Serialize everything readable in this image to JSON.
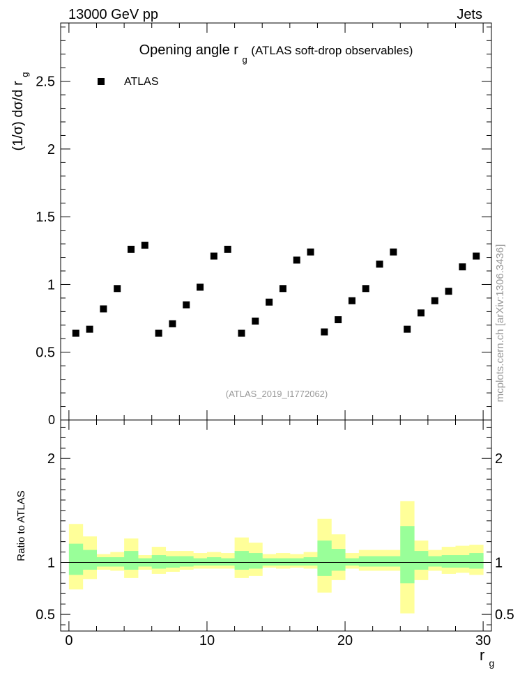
{
  "header": {
    "left": "13000 GeV pp",
    "right": "Jets"
  },
  "side_label": "mcplots.cern.ch [arXiv:1306.3436]",
  "chart_data": [
    {
      "type": "scatter",
      "title_main": "Opening angle r",
      "title_sub": "g",
      "title_rest": "(ATLAS soft-drop observables)",
      "ylabel_main": "(1/σ) dσ/d r",
      "ylabel_sub": "g",
      "analysis_id": "(ATLAS_2019_I1772062)",
      "legend": {
        "label": "ATLAS",
        "marker": "square",
        "placement": "top-left"
      },
      "xlim": [
        -0.6,
        30.6
      ],
      "ylim": [
        0,
        2.93
      ],
      "y_ticks": [
        0.5,
        1,
        1.5,
        2,
        2.5
      ],
      "y_tick_labels": [
        "0.5",
        "1",
        "1.5",
        "2",
        "2.5"
      ],
      "y_bottom_label": "0",
      "series": [
        {
          "name": "ATLAS",
          "x": [
            0.5,
            1.5,
            2.5,
            3.5,
            4.5,
            5.5,
            6.5,
            7.5,
            8.5,
            9.5,
            10.5,
            11.5,
            12.5,
            13.5,
            14.5,
            15.5,
            16.5,
            17.5,
            18.5,
            19.5,
            20.5,
            21.5,
            22.5,
            23.5,
            24.5,
            25.5,
            26.5,
            27.5,
            28.5,
            29.5
          ],
          "y": [
            0.64,
            0.67,
            0.82,
            0.97,
            1.26,
            1.29,
            0.64,
            0.71,
            0.85,
            0.98,
            1.21,
            1.26,
            0.64,
            0.73,
            0.87,
            0.97,
            1.18,
            1.24,
            0.65,
            0.74,
            0.88,
            0.97,
            1.15,
            1.24,
            0.67,
            0.79,
            0.88,
            0.95,
            1.13,
            1.21
          ]
        }
      ]
    },
    {
      "type": "area",
      "ylabel": "Ratio to ATLAS",
      "xlabel_main": "r",
      "xlabel_sub": "g",
      "xlim": [
        -0.6,
        30.6
      ],
      "ylim": [
        0.34,
        2.37
      ],
      "x_ticks": [
        0,
        10,
        20,
        30
      ],
      "x_tick_labels": [
        "0",
        "10",
        "20",
        "30"
      ],
      "y_ticks": [
        0.5,
        1,
        2
      ],
      "y_tick_labels": [
        "0.5",
        "1",
        "2"
      ],
      "reference_line": 1,
      "band_colors": {
        "outer": "#ffff99",
        "inner": "#99ff99",
        "line": "#000000"
      },
      "bins_x_edges": [
        0,
        1,
        2,
        3,
        4,
        5,
        6,
        7,
        8,
        9,
        10,
        11,
        12,
        13,
        14,
        15,
        16,
        17,
        18,
        19,
        20,
        21,
        22,
        23,
        24,
        25,
        26,
        27,
        28,
        29,
        30
      ],
      "outer_band": {
        "low": [
          0.74,
          0.84,
          0.93,
          0.92,
          0.85,
          0.93,
          0.89,
          0.91,
          0.93,
          0.94,
          0.94,
          0.94,
          0.85,
          0.87,
          0.95,
          0.94,
          0.95,
          0.94,
          0.71,
          0.83,
          0.94,
          0.92,
          0.92,
          0.92,
          0.51,
          0.83,
          0.92,
          0.89,
          0.9,
          0.88
        ],
        "high": [
          1.37,
          1.25,
          1.08,
          1.1,
          1.23,
          1.07,
          1.15,
          1.11,
          1.11,
          1.09,
          1.1,
          1.09,
          1.24,
          1.19,
          1.08,
          1.09,
          1.08,
          1.1,
          1.42,
          1.27,
          1.09,
          1.12,
          1.12,
          1.12,
          1.59,
          1.21,
          1.12,
          1.15,
          1.16,
          1.17
        ]
      },
      "inner_band": {
        "low": [
          0.88,
          0.93,
          0.96,
          0.96,
          0.93,
          0.96,
          0.94,
          0.95,
          0.96,
          0.97,
          0.97,
          0.97,
          0.93,
          0.94,
          0.97,
          0.97,
          0.97,
          0.97,
          0.87,
          0.92,
          0.97,
          0.96,
          0.96,
          0.96,
          0.8,
          0.93,
          0.96,
          0.95,
          0.95,
          0.94
        ],
        "high": [
          1.18,
          1.12,
          1.05,
          1.05,
          1.11,
          1.04,
          1.07,
          1.06,
          1.06,
          1.04,
          1.05,
          1.04,
          1.11,
          1.09,
          1.04,
          1.04,
          1.04,
          1.05,
          1.21,
          1.13,
          1.04,
          1.06,
          1.06,
          1.06,
          1.35,
          1.11,
          1.06,
          1.07,
          1.07,
          1.09
        ]
      }
    }
  ]
}
